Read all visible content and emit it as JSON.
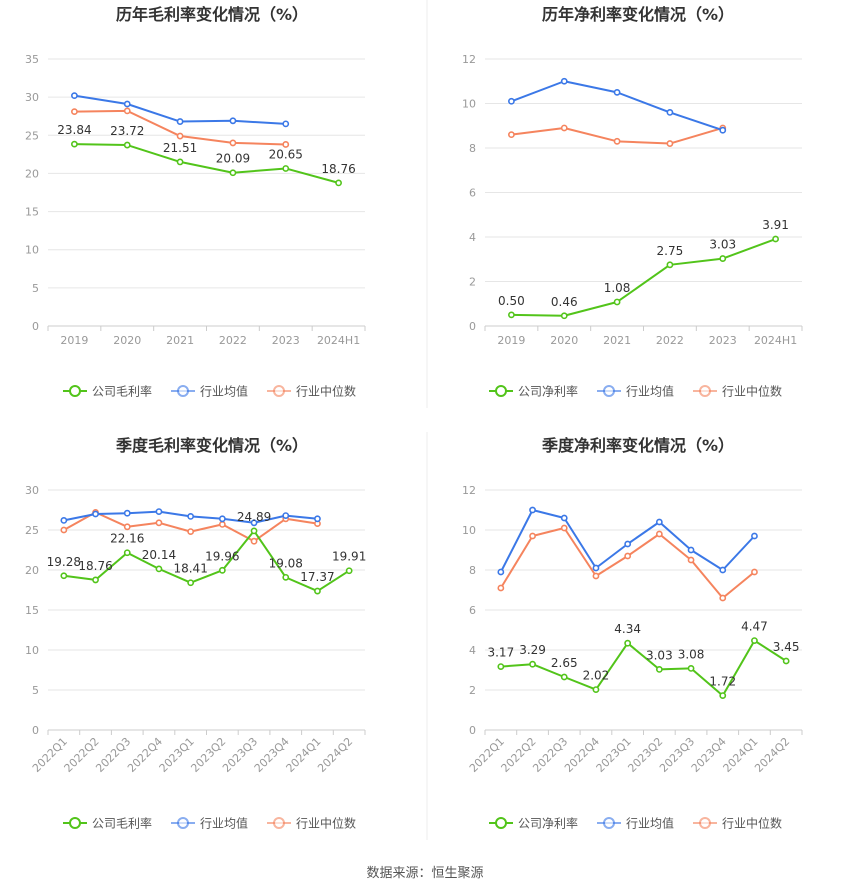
{
  "colors": {
    "company": "#52c41a",
    "industry_mean": "#3b78e7",
    "industry_median": "#f5845e",
    "axis_text": "#999999",
    "grid": "#e6e6e6",
    "title": "#333333"
  },
  "footer": {
    "source": "数据来源：恒生聚源"
  },
  "chart_data": [
    {
      "type": "line",
      "title": "历年毛利率变化情况（%）",
      "categories": [
        "2019",
        "2020",
        "2021",
        "2022",
        "2023",
        "2024H1"
      ],
      "ylim": [
        0,
        35
      ],
      "yticks": [
        0,
        5,
        10,
        15,
        20,
        25,
        30,
        35
      ],
      "rotate_labels": false,
      "grid": true,
      "legend_position": "bottom",
      "series": [
        {
          "name": "公司毛利率",
          "color": "#52c41a",
          "labels": true,
          "values": [
            23.84,
            23.72,
            21.51,
            20.09,
            20.65,
            18.76
          ]
        },
        {
          "name": "行业均值",
          "color": "#3b78e7",
          "labels": false,
          "values": [
            30.2,
            29.1,
            26.8,
            26.9,
            26.5,
            null
          ]
        },
        {
          "name": "行业中位数",
          "color": "#f5845e",
          "labels": false,
          "values": [
            28.1,
            28.2,
            24.9,
            24.0,
            23.8,
            null
          ]
        }
      ]
    },
    {
      "type": "line",
      "title": "历年净利率变化情况（%）",
      "categories": [
        "2019",
        "2020",
        "2021",
        "2022",
        "2023",
        "2024H1"
      ],
      "ylim": [
        0,
        12
      ],
      "yticks": [
        0,
        2,
        4,
        6,
        8,
        10,
        12
      ],
      "rotate_labels": false,
      "grid": true,
      "legend_position": "bottom",
      "series": [
        {
          "name": "公司净利率",
          "color": "#52c41a",
          "labels": true,
          "values": [
            0.5,
            0.46,
            1.08,
            2.75,
            3.03,
            3.91
          ]
        },
        {
          "name": "行业均值",
          "color": "#3b78e7",
          "labels": false,
          "values": [
            10.1,
            11.0,
            10.5,
            9.6,
            8.8,
            null
          ]
        },
        {
          "name": "行业中位数",
          "color": "#f5845e",
          "labels": false,
          "values": [
            8.6,
            8.9,
            8.3,
            8.2,
            8.9,
            null
          ]
        }
      ]
    },
    {
      "type": "line",
      "title": "季度毛利率变化情况（%）",
      "categories": [
        "2022Q1",
        "2022Q2",
        "2022Q3",
        "2022Q4",
        "2023Q1",
        "2023Q2",
        "2023Q3",
        "2023Q4",
        "2024Q1",
        "2024Q2"
      ],
      "ylim": [
        0,
        30
      ],
      "yticks": [
        0,
        5,
        10,
        15,
        20,
        25,
        30
      ],
      "rotate_labels": true,
      "grid": true,
      "legend_position": "bottom",
      "series": [
        {
          "name": "公司毛利率",
          "color": "#52c41a",
          "labels": true,
          "values": [
            19.28,
            18.76,
            22.16,
            20.14,
            18.41,
            19.96,
            24.89,
            19.08,
            17.37,
            19.91
          ]
        },
        {
          "name": "行业均值",
          "color": "#3b78e7",
          "labels": false,
          "values": [
            26.2,
            27.0,
            27.1,
            27.3,
            26.7,
            26.4,
            25.9,
            26.8,
            26.4,
            null
          ]
        },
        {
          "name": "行业中位数",
          "color": "#f5845e",
          "labels": false,
          "values": [
            25.0,
            27.2,
            25.4,
            25.9,
            24.8,
            25.7,
            23.6,
            26.4,
            25.8,
            null
          ]
        }
      ]
    },
    {
      "type": "line",
      "title": "季度净利率变化情况（%）",
      "categories": [
        "2022Q1",
        "2022Q2",
        "2022Q3",
        "2022Q4",
        "2023Q1",
        "2023Q2",
        "2023Q3",
        "2023Q4",
        "2024Q1",
        "2024Q2"
      ],
      "ylim": [
        0,
        12
      ],
      "yticks": [
        0,
        2,
        4,
        6,
        8,
        10,
        12
      ],
      "rotate_labels": true,
      "grid": true,
      "legend_position": "bottom",
      "series": [
        {
          "name": "公司净利率",
          "color": "#52c41a",
          "labels": true,
          "values": [
            3.17,
            3.29,
            2.65,
            2.02,
            4.34,
            3.03,
            3.08,
            1.72,
            4.47,
            3.45
          ]
        },
        {
          "name": "行业均值",
          "color": "#3b78e7",
          "labels": false,
          "values": [
            7.9,
            11.0,
            10.6,
            8.1,
            9.3,
            10.4,
            9.0,
            8.0,
            9.7,
            null
          ]
        },
        {
          "name": "行业中位数",
          "color": "#f5845e",
          "labels": false,
          "values": [
            7.1,
            9.7,
            10.1,
            7.7,
            8.7,
            9.8,
            8.5,
            6.6,
            7.9,
            null
          ]
        }
      ]
    }
  ]
}
